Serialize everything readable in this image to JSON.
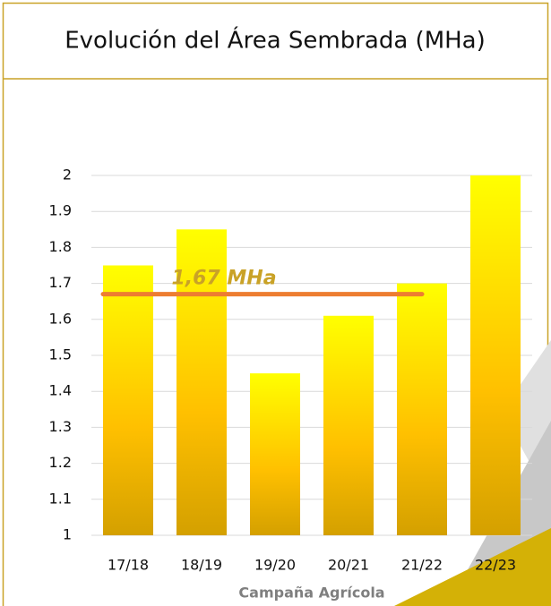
{
  "chart_data": {
    "type": "bar",
    "title": "Evolución del Área Sembrada (MHa)",
    "categories": [
      "17/18",
      "18/19",
      "19/20",
      "20/21",
      "21/22",
      "22/23"
    ],
    "values": [
      1.75,
      1.85,
      1.45,
      1.61,
      1.7,
      2.0
    ],
    "color": "#ffff00",
    "ylim": [
      1,
      2
    ],
    "yticks": [
      1,
      1.1,
      1.2,
      1.3,
      1.4,
      1.5,
      1.6,
      1.7,
      1.8,
      1.9,
      2
    ],
    "grid": true,
    "x_label": "Campaña Agrícola",
    "average": {
      "value": 1.67,
      "label": "1,67 MHa",
      "color": "#ed7d31"
    }
  }
}
